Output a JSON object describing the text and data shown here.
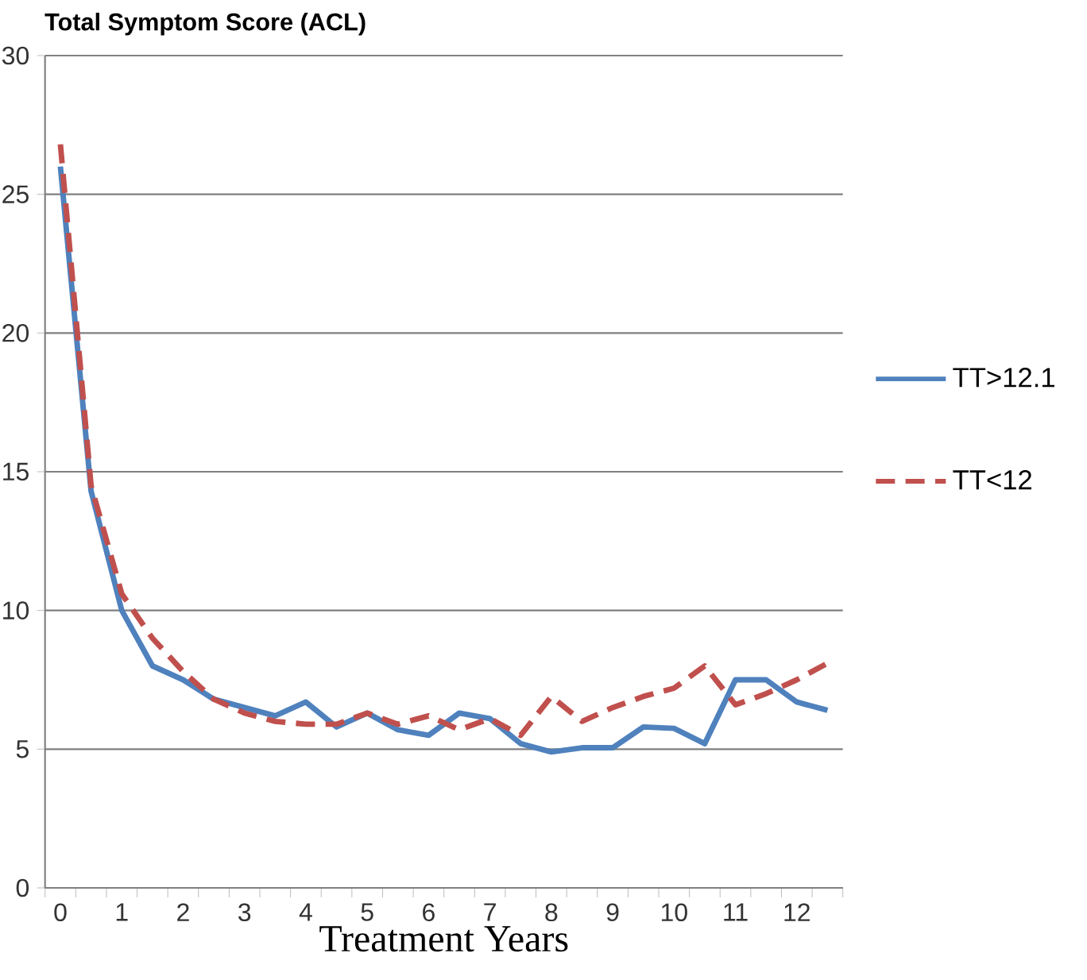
{
  "chart_data": {
    "type": "line",
    "title": "Total Symptom Score (ACL)",
    "xlabel": "Treatment Years",
    "categories": [
      "0",
      null,
      "1",
      null,
      "2",
      null,
      "3",
      null,
      "4",
      null,
      "5",
      null,
      "6",
      null,
      "7",
      null,
      "8",
      null,
      "9",
      null,
      "10",
      null,
      "11",
      null,
      "12",
      null
    ],
    "series": [
      {
        "name": "TT>12.1",
        "color": "#4f81bd",
        "line_style": "solid",
        "values": [
          26,
          14.3,
          10.0,
          8.0,
          7.5,
          6.8,
          6.5,
          6.2,
          6.7,
          5.8,
          6.3,
          5.7,
          5.5,
          6.3,
          6.1,
          5.2,
          4.9,
          5.05,
          5.05,
          5.8,
          5.75,
          5.2,
          7.5,
          7.5,
          6.7,
          6.4
        ]
      },
      {
        "name": "TT<12",
        "color": "#c0504d",
        "line_style": "dashed",
        "values": [
          26.8,
          14.5,
          10.6,
          9.0,
          7.8,
          6.8,
          6.3,
          6.0,
          5.9,
          5.9,
          6.3,
          5.9,
          6.2,
          5.7,
          6.1,
          5.5,
          6.9,
          6.0,
          6.5,
          6.9,
          7.2,
          8.0,
          6.6,
          7.0,
          7.5,
          8.1
        ]
      }
    ],
    "ylim": [
      0,
      30
    ],
    "yticks": [
      0,
      5,
      10,
      15,
      20,
      25,
      30
    ],
    "grid": "y",
    "legend": "right",
    "marker": "none"
  }
}
